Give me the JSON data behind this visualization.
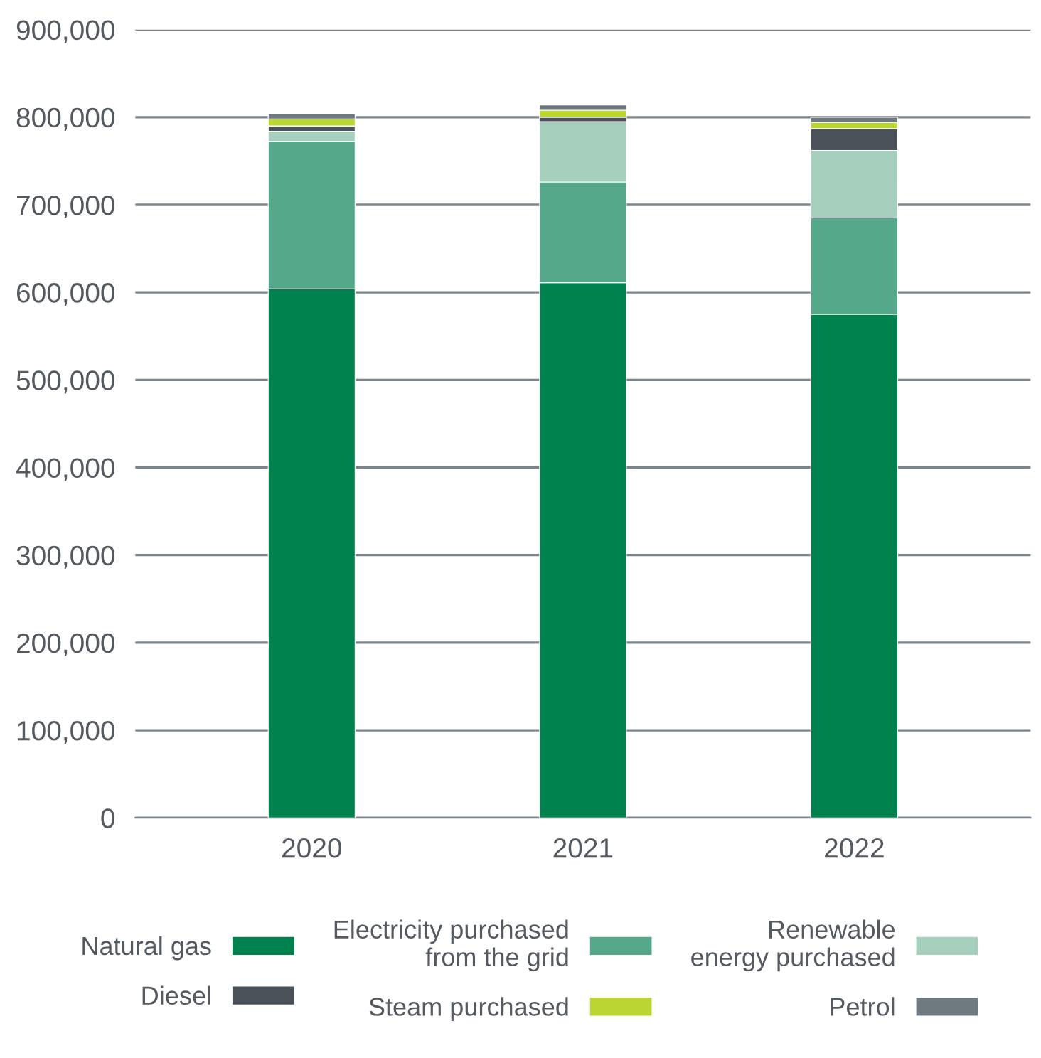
{
  "chart_data": {
    "type": "bar",
    "stacked": true,
    "categories": [
      "2020",
      "2021",
      "2022"
    ],
    "series": [
      {
        "name": "Natural gas",
        "color": "#00824f",
        "values": [
          604000,
          611000,
          575000
        ]
      },
      {
        "name": "Electricity purchased from the grid",
        "color": "#55a88a",
        "values": [
          168000,
          115000,
          110000
        ]
      },
      {
        "name": "Renewable energy purchased",
        "color": "#a6cfbd",
        "values": [
          12000,
          69000,
          77000
        ]
      },
      {
        "name": "Diesel",
        "color": "#4b5259",
        "values": [
          6000,
          5000,
          25000
        ]
      },
      {
        "name": "Steam purchased",
        "color": "#bcd631",
        "values": [
          8000,
          8000,
          7000
        ]
      },
      {
        "name": "Petrol",
        "color": "#6f7a80",
        "values": [
          6000,
          6000,
          6000
        ]
      }
    ],
    "ylim": [
      0,
      900000
    ],
    "yticks": [
      {
        "value": 0,
        "label": "0"
      },
      {
        "value": 100000,
        "label": "100,000"
      },
      {
        "value": 200000,
        "label": "200,000"
      },
      {
        "value": 300000,
        "label": "300,000"
      },
      {
        "value": 400000,
        "label": "400,000"
      },
      {
        "value": 500000,
        "label": "500,000"
      },
      {
        "value": 600000,
        "label": "600,000"
      },
      {
        "value": 700000,
        "label": "700,000"
      },
      {
        "value": 800000,
        "label": "800,000"
      },
      {
        "value": 900000,
        "label": "900,000"
      }
    ],
    "grid": "y",
    "legend": "bottom"
  }
}
